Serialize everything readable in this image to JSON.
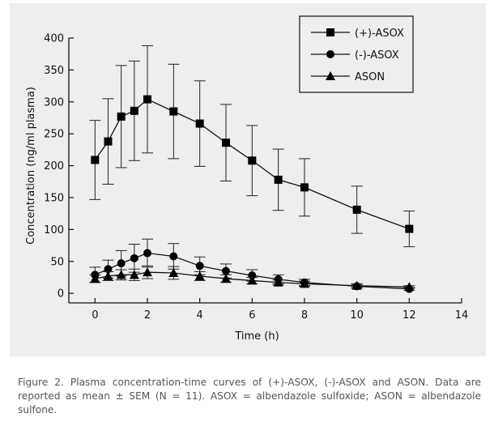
{
  "caption": "Figure 2. Plasma concentration-time curves of (+)-ASOX, (-)-ASOX and ASON. Data are reported as mean ± SEM (N = 11). ASOX = albendazole sulfoxide; ASON = albendazole sulfone.",
  "chart_data": {
    "type": "line",
    "title": "",
    "xlabel": "Time (h)",
    "ylabel": "Concentration (ng/ml plasma)",
    "xlim": [
      -1,
      14
    ],
    "ylim": [
      -15,
      400
    ],
    "xticks": [
      0,
      2,
      4,
      6,
      8,
      10,
      12,
      14
    ],
    "yticks": [
      0,
      50,
      100,
      150,
      200,
      250,
      300,
      350,
      400
    ],
    "grid": false,
    "legend_position": "top-right",
    "series": [
      {
        "name": "(+)-ASOX",
        "marker": "square",
        "x": [
          0,
          0.5,
          1,
          1.5,
          2,
          3,
          4,
          5,
          6,
          7,
          8,
          10,
          12
        ],
        "y": [
          209,
          238,
          277,
          286,
          304,
          285,
          266,
          236,
          208,
          178,
          166,
          131,
          101
        ],
        "err": [
          62,
          67,
          80,
          78,
          84,
          74,
          67,
          60,
          55,
          48,
          45,
          37,
          28
        ]
      },
      {
        "name": "(-)-ASOX",
        "marker": "circle",
        "x": [
          0,
          0.5,
          1,
          1.5,
          2,
          3,
          4,
          5,
          6,
          7,
          8,
          10,
          12
        ],
        "y": [
          29,
          38,
          47,
          55,
          63,
          58,
          43,
          35,
          28,
          22,
          17,
          11,
          7
        ],
        "err": [
          12,
          14,
          20,
          22,
          22,
          20,
          14,
          11,
          9,
          7,
          5,
          3,
          2
        ]
      },
      {
        "name": "ASON",
        "marker": "triangle",
        "x": [
          0,
          0.5,
          1,
          1.5,
          2,
          3,
          4,
          5,
          6,
          7,
          8,
          10,
          12
        ],
        "y": [
          23,
          27,
          29,
          29,
          33,
          32,
          27,
          23,
          20,
          17,
          15,
          12,
          10
        ],
        "err": [
          6,
          7,
          8,
          9,
          10,
          10,
          7,
          6,
          5,
          4,
          4,
          3,
          2
        ]
      }
    ]
  }
}
